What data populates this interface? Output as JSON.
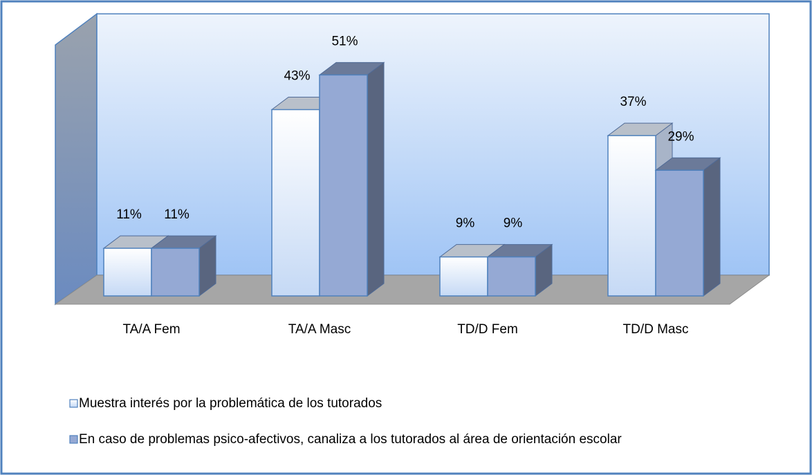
{
  "chart_data": {
    "type": "bar3d",
    "categories": [
      "TA/A Fem",
      "TA/A Masc",
      "TD/D Fem",
      "TD/D Masc"
    ],
    "series": [
      {
        "name": "Muestra interés por la problemática de los tutorados",
        "color": "#c5d9f5",
        "values": [
          11,
          43,
          9,
          37
        ],
        "value_labels": [
          "11%",
          "43%",
          "9%",
          "37%"
        ]
      },
      {
        "name": "En caso de problemas psico-afectivos, canaliza a los tutorados al área de orientación escolar",
        "color": "#95a9d4",
        "values": [
          11,
          51,
          9,
          29
        ],
        "value_labels": [
          "11%",
          "51%",
          "9%",
          "29%"
        ]
      }
    ],
    "ylim": [
      0,
      60
    ]
  }
}
